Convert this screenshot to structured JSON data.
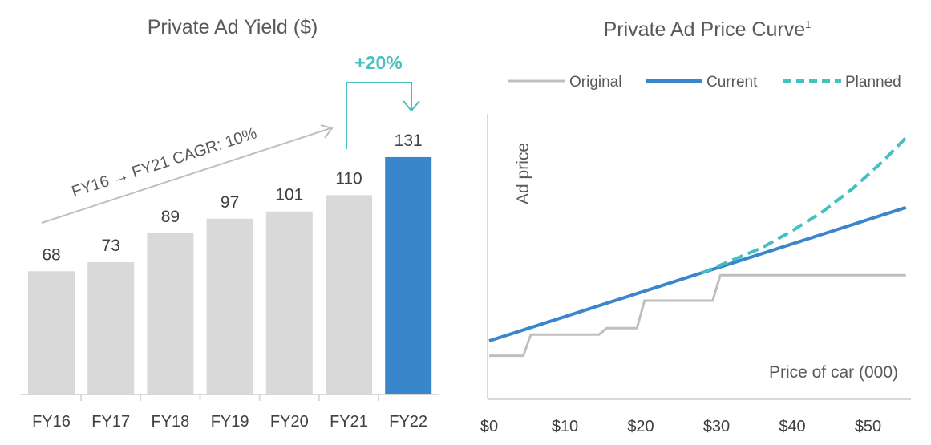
{
  "colors": {
    "gray_bar": "#d9d9d9",
    "blue": "#3a86cc",
    "teal": "#45c0c0",
    "gray_line": "#bfbfbf",
    "text": "#404040"
  },
  "chart_data": [
    {
      "type": "bar",
      "title": "Private Ad Yield ($)",
      "categories": [
        "FY16",
        "FY17",
        "FY18",
        "FY19",
        "FY20",
        "FY21",
        "FY22"
      ],
      "values": [
        68,
        73,
        89,
        97,
        101,
        110,
        131
      ],
      "value_labels": [
        "68",
        "73",
        "89",
        "97",
        "101",
        "110",
        "131"
      ],
      "highlight_index": 6,
      "annotations": {
        "cagr": "FY16 → FY21 CAGR: 10%",
        "growth": "+20%"
      },
      "grid": false
    },
    {
      "type": "line",
      "title": "Private Ad Price Curve",
      "title_sup": "1",
      "xlabel": "Price of car (000)",
      "ylabel": "Ad price",
      "xlim": [
        0,
        55
      ],
      "x_ticks": [
        "$0",
        "$10",
        "$20",
        "$30",
        "$40",
        "$50"
      ],
      "x_tick_values": [
        0,
        10,
        20,
        30,
        40,
        50
      ],
      "legend_position": "top",
      "grid": false,
      "series": [
        {
          "name": "Original",
          "style": "solid",
          "color": "#bfbfbf",
          "x": [
            0,
            4.5,
            5.5,
            14.5,
            15.5,
            19.5,
            20.5,
            29.5,
            30.5,
            55
          ],
          "y": [
            1.0,
            1.0,
            2.0,
            2.0,
            2.3,
            2.3,
            3.6,
            3.6,
            4.8,
            4.8
          ]
        },
        {
          "name": "Current",
          "style": "solid",
          "color": "#3a86cc",
          "x": [
            0,
            55
          ],
          "y": [
            1.7,
            8.0
          ]
        },
        {
          "name": "Planned",
          "style": "dashed",
          "color": "#45c0c0",
          "x": [
            28,
            32,
            36,
            40,
            44,
            48,
            52,
            55
          ],
          "y": [
            4.9,
            5.5,
            6.1,
            6.9,
            7.8,
            8.9,
            10.2,
            11.3
          ]
        }
      ]
    }
  ]
}
